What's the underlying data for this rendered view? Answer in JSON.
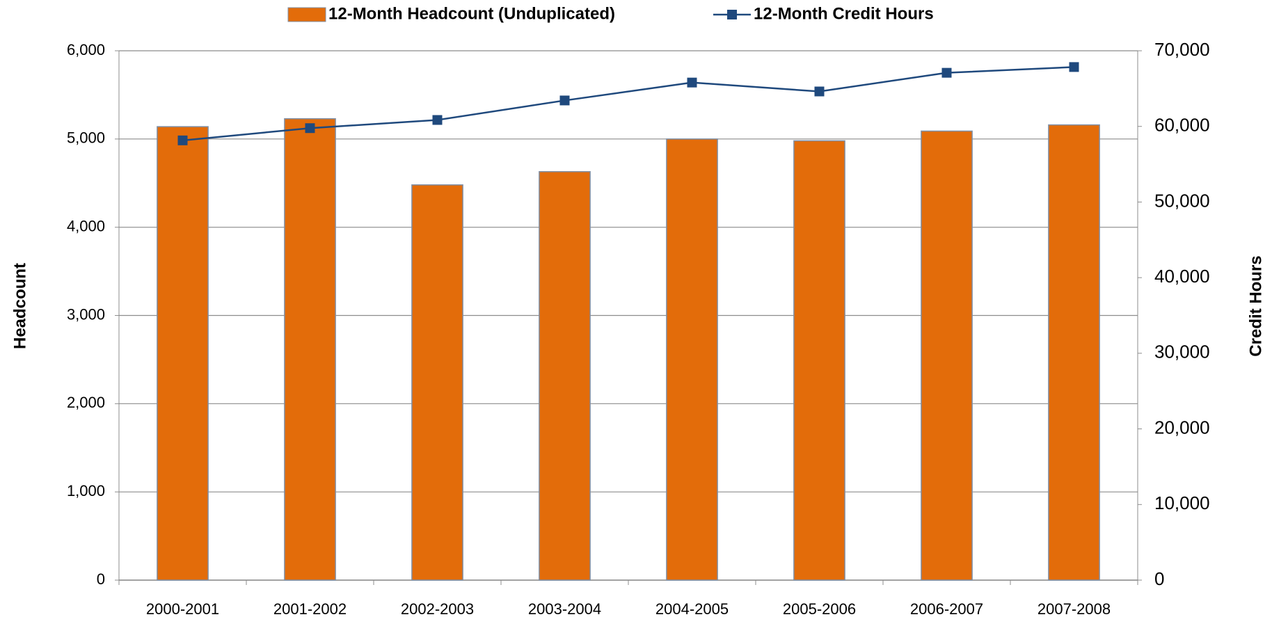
{
  "chart_data": {
    "type": "bar_line",
    "categories": [
      "2000-2001",
      "2001-2002",
      "2002-2003",
      "2003-2004",
      "2004-2005",
      "2005-2006",
      "2006-2007",
      "2007-2008"
    ],
    "series": [
      {
        "name": "12-Month Headcount (Unduplicated)",
        "type": "bar",
        "color": "#E36C0A",
        "values": [
          5140,
          5230,
          4480,
          4630,
          5000,
          4980,
          5090,
          5160
        ]
      },
      {
        "name": "12-Month Credit Hours",
        "type": "line",
        "axis": "y2",
        "color": "#1F497D",
        "values": [
          58150,
          59770,
          60850,
          63430,
          65800,
          64620,
          67090,
          67850
        ]
      }
    ],
    "y_label": "Headcount",
    "y2_label": "Credit Hours",
    "ylim": [
      0,
      6000
    ],
    "yticks": [
      0,
      {
        "value": 1000,
        "label": "1,000"
      },
      {
        "value": 2000,
        "label": "2,000"
      },
      {
        "value": 3000,
        "label": "3,000"
      },
      {
        "value": 4000,
        "label": "4,000"
      },
      {
        "value": 5000,
        "label": "5,000"
      },
      {
        "value": 6000,
        "label": "6,000"
      }
    ],
    "y2lim": [
      0,
      70000
    ],
    "y2ticks": [
      0,
      {
        "value": 10000,
        "label": "10,000"
      },
      {
        "value": 20000,
        "label": "20,000"
      },
      {
        "value": 30000,
        "label": "30,000"
      },
      {
        "value": 40000,
        "label": "40,000"
      },
      {
        "value": 50000,
        "label": "50,000"
      },
      {
        "value": 60000,
        "label": "60,000"
      },
      {
        "value": 70000,
        "label": "70,000"
      }
    ],
    "grid": true,
    "legend": "top"
  }
}
